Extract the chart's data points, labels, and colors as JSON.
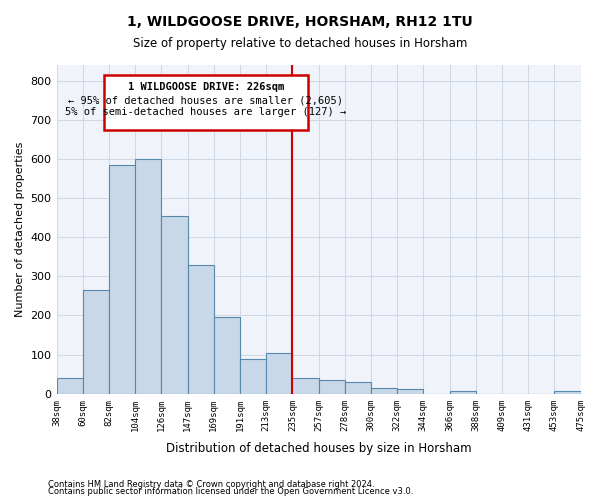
{
  "title": "1, WILDGOOSE DRIVE, HORSHAM, RH12 1TU",
  "subtitle": "Size of property relative to detached houses in Horsham",
  "xlabel": "Distribution of detached houses by size in Horsham",
  "ylabel": "Number of detached properties",
  "bar_values": [
    40,
    265,
    585,
    600,
    455,
    328,
    195,
    90,
    103,
    40,
    35,
    30,
    15,
    13,
    0,
    8,
    0,
    0,
    0,
    7
  ],
  "bar_labels": [
    "38sqm",
    "60sqm",
    "82sqm",
    "104sqm",
    "126sqm",
    "147sqm",
    "169sqm",
    "191sqm",
    "213sqm",
    "235sqm",
    "257sqm",
    "278sqm",
    "300sqm",
    "322sqm",
    "344sqm",
    "366sqm",
    "388sqm",
    "409sqm",
    "431sqm",
    "453sqm",
    "475sqm"
  ],
  "bar_color": "#c8d8e8",
  "bar_edge_color": "#5588aa",
  "vline_x": 8.5,
  "vline_color": "#cc0000",
  "box_text_line1": "1 WILDGOOSE DRIVE: 226sqm",
  "box_text_line2": "← 95% of detached houses are smaller (2,605)",
  "box_text_line3": "5% of semi-detached houses are larger (127) →",
  "box_color": "#cc0000",
  "ylim": [
    0,
    840
  ],
  "yticks": [
    0,
    100,
    200,
    300,
    400,
    500,
    600,
    700,
    800
  ],
  "grid_color": "#d0d8e8",
  "bg_color": "#f0f4fa",
  "footnote1": "Contains HM Land Registry data © Crown copyright and database right 2024.",
  "footnote2": "Contains public sector information licensed under the Open Government Licence v3.0."
}
